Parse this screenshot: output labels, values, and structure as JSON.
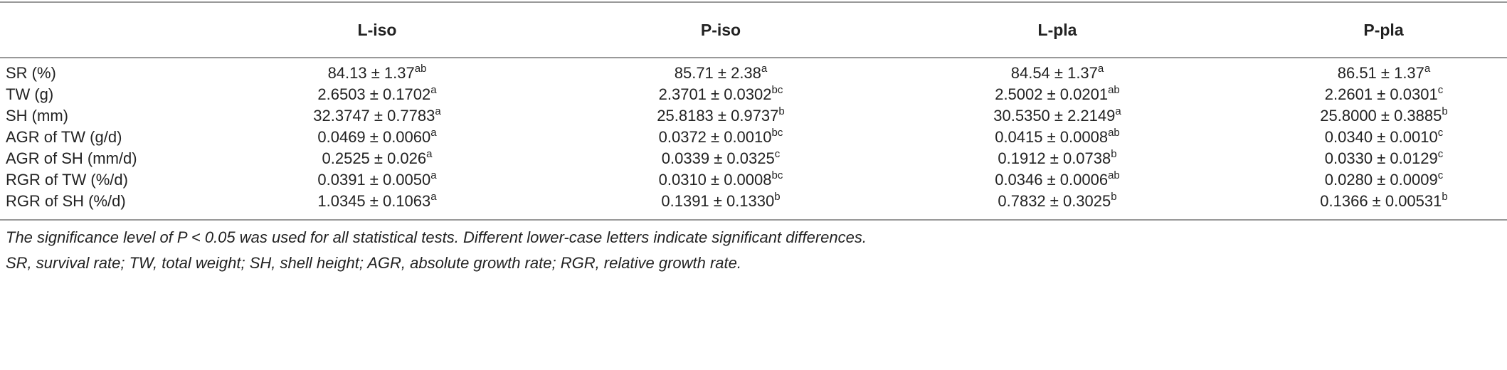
{
  "table": {
    "header": [
      "L-iso",
      "P-iso",
      "L-pla",
      "P-pla"
    ],
    "rows": [
      {
        "label": "SR (%)",
        "cells": [
          {
            "text": "84.13 ± 1.37",
            "sup": "ab"
          },
          {
            "text": "85.71 ± 2.38",
            "sup": "a"
          },
          {
            "text": "84.54 ± 1.37",
            "sup": "a"
          },
          {
            "text": "86.51 ± 1.37",
            "sup": "a"
          }
        ]
      },
      {
        "label": "TW (g)",
        "cells": [
          {
            "text": "2.6503 ± 0.1702",
            "sup": "a"
          },
          {
            "text": "2.3701 ± 0.0302",
            "sup": "bc"
          },
          {
            "text": "2.5002 ± 0.0201",
            "sup": "ab"
          },
          {
            "text": "2.2601 ± 0.0301",
            "sup": "c"
          }
        ]
      },
      {
        "label": "SH (mm)",
        "cells": [
          {
            "text": "32.3747 ± 0.7783",
            "sup": "a"
          },
          {
            "text": "25.8183 ± 0.9737",
            "sup": "b"
          },
          {
            "text": "30.5350 ± 2.2149",
            "sup": "a"
          },
          {
            "text": "25.8000 ± 0.3885",
            "sup": "b"
          }
        ]
      },
      {
        "label": "AGR of TW (g/d)",
        "cells": [
          {
            "text": "0.0469 ± 0.0060",
            "sup": "a"
          },
          {
            "text": "0.0372 ± 0.0010",
            "sup": "bc"
          },
          {
            "text": "0.0415 ± 0.0008",
            "sup": "ab"
          },
          {
            "text": "0.0340 ± 0.0010",
            "sup": "c"
          }
        ]
      },
      {
        "label": "AGR of SH (mm/d)",
        "cells": [
          {
            "text": "0.2525 ± 0.026",
            "sup": "a"
          },
          {
            "text": "0.0339 ± 0.0325",
            "sup": "c"
          },
          {
            "text": "0.1912 ± 0.0738",
            "sup": "b"
          },
          {
            "text": "0.0330 ± 0.0129",
            "sup": "c"
          }
        ]
      },
      {
        "label": "RGR of TW (%/d)",
        "cells": [
          {
            "text": "0.0391 ± 0.0050",
            "sup": "a"
          },
          {
            "text": "0.0310 ± 0.0008",
            "sup": "bc"
          },
          {
            "text": "0.0346 ± 0.0006",
            "sup": "ab"
          },
          {
            "text": "0.0280 ± 0.0009",
            "sup": "c"
          }
        ]
      },
      {
        "label": "RGR of SH (%/d)",
        "cells": [
          {
            "text": "1.0345 ± 0.1063",
            "sup": "a"
          },
          {
            "text": "0.1391 ± 0.1330",
            "sup": "b"
          },
          {
            "text": "0.7832 ± 0.3025",
            "sup": "b"
          },
          {
            "text": "0.1366 ± 0.00531",
            "sup": "b"
          }
        ]
      }
    ]
  },
  "footnotes": [
    "The significance level of P < 0.05 was used for all statistical tests. Different lower-case letters indicate significant differences.",
    "SR, survival rate; TW, total weight; SH, shell height; AGR, absolute growth rate; RGR, relative growth rate."
  ]
}
